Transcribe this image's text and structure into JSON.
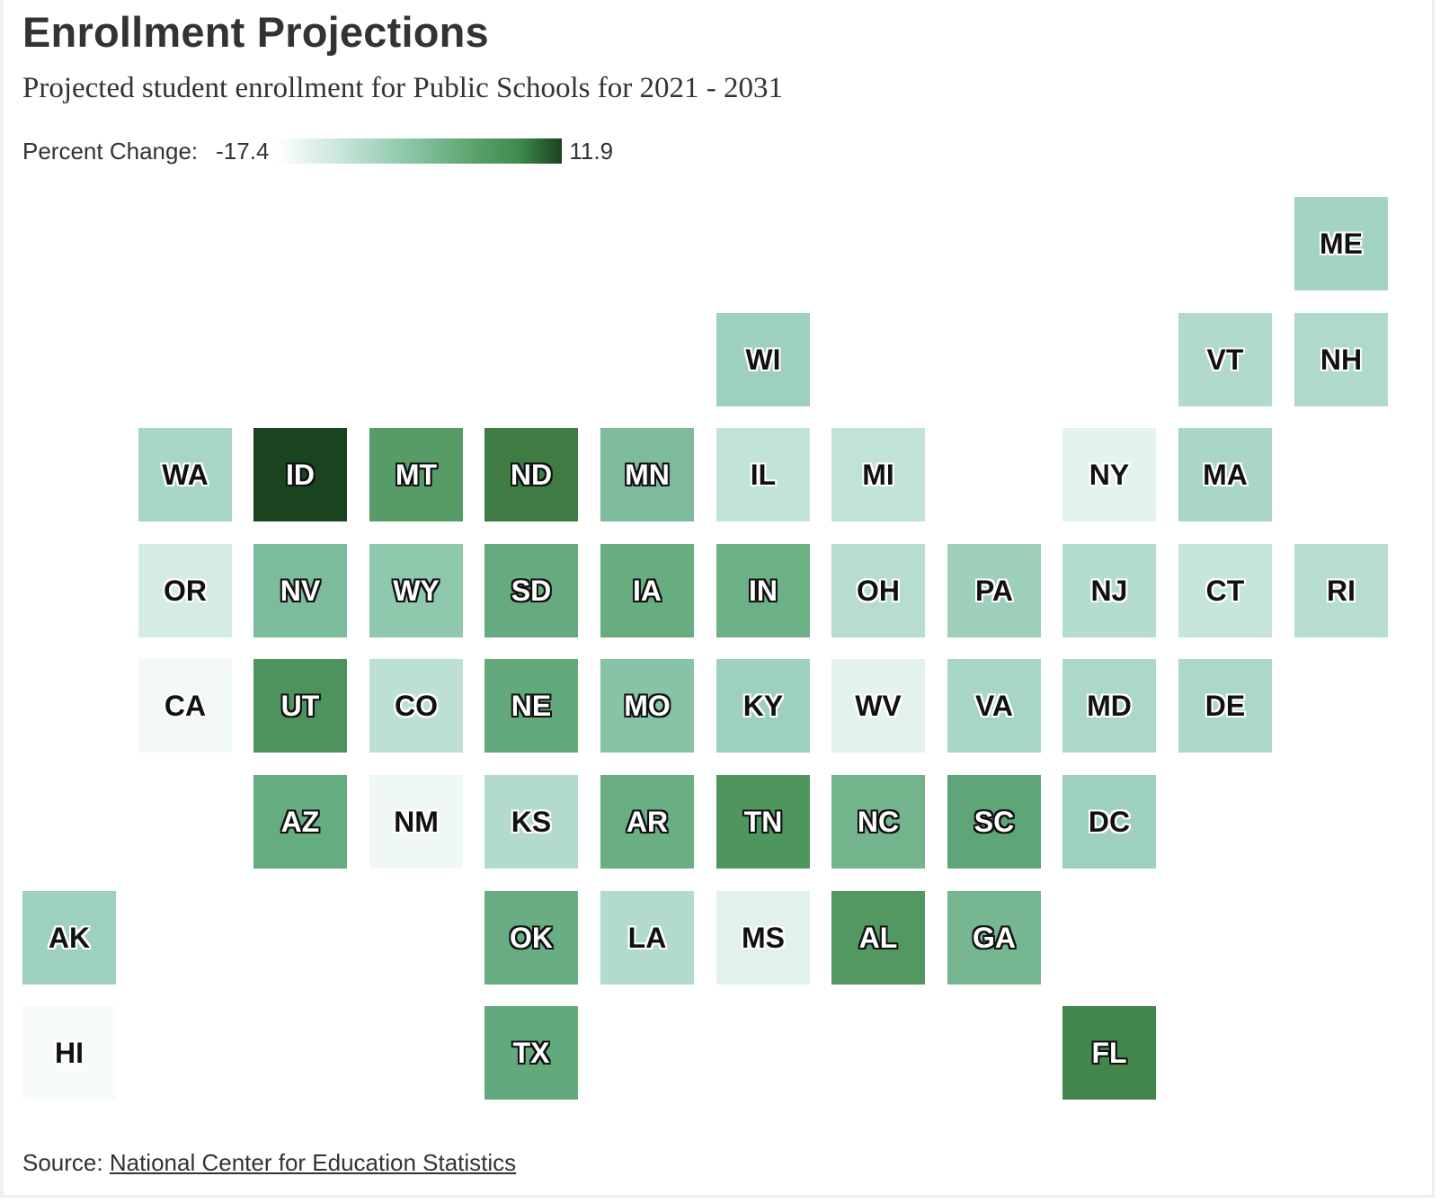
{
  "title": "Enrollment Projections",
  "subtitle": "Projected student enrollment for Public Schools for 2021 - 2031",
  "legend": {
    "label": "Percent Change:",
    "min_label": "-17.4",
    "max_label": "11.9"
  },
  "source": {
    "prefix": "Source:",
    "link_text": "National Center for Education Statistics"
  },
  "chart_data": {
    "type": "heatmap",
    "title": "Enrollment Projections",
    "subtitle": "Projected student enrollment for Public Schools for 2021 - 2031",
    "color_scale": {
      "min": -17.4,
      "max": 11.9,
      "colors": [
        "#ffffff",
        "#1a4320"
      ]
    },
    "states": [
      {
        "code": "ME",
        "row": 0,
        "col": 11,
        "color": "#a3d3c2",
        "dark_text": false
      },
      {
        "code": "WI",
        "row": 1,
        "col": 6,
        "color": "#9ed1bd",
        "dark_text": false
      },
      {
        "code": "VT",
        "row": 1,
        "col": 10,
        "color": "#b1dacb",
        "dark_text": false
      },
      {
        "code": "NH",
        "row": 1,
        "col": 11,
        "color": "#afd9ca",
        "dark_text": false
      },
      {
        "code": "WA",
        "row": 2,
        "col": 1,
        "color": "#a8d6c5",
        "dark_text": false
      },
      {
        "code": "ID",
        "row": 2,
        "col": 2,
        "color": "#1a4320",
        "dark_text": true
      },
      {
        "code": "MT",
        "row": 2,
        "col": 3,
        "color": "#579b66",
        "dark_text": true
      },
      {
        "code": "ND",
        "row": 2,
        "col": 4,
        "color": "#3e7c44",
        "dark_text": true
      },
      {
        "code": "MN",
        "row": 2,
        "col": 5,
        "color": "#7dbb9c",
        "dark_text": true
      },
      {
        "code": "IL",
        "row": 2,
        "col": 6,
        "color": "#c2e3d8",
        "dark_text": false
      },
      {
        "code": "MI",
        "row": 2,
        "col": 7,
        "color": "#c0e2d7",
        "dark_text": false
      },
      {
        "code": "NY",
        "row": 2,
        "col": 9,
        "color": "#e5f3ef",
        "dark_text": false
      },
      {
        "code": "MA",
        "row": 2,
        "col": 10,
        "color": "#a9d6c6",
        "dark_text": false
      },
      {
        "code": "OR",
        "row": 3,
        "col": 1,
        "color": "#d5ece5",
        "dark_text": false
      },
      {
        "code": "NV",
        "row": 3,
        "col": 2,
        "color": "#7cbc9c",
        "dark_text": true
      },
      {
        "code": "WY",
        "row": 3,
        "col": 3,
        "color": "#8ec8ad",
        "dark_text": true
      },
      {
        "code": "SD",
        "row": 3,
        "col": 4,
        "color": "#65ab7f",
        "dark_text": true
      },
      {
        "code": "IA",
        "row": 3,
        "col": 5,
        "color": "#68ad80",
        "dark_text": true
      },
      {
        "code": "IN",
        "row": 3,
        "col": 6,
        "color": "#6cb085",
        "dark_text": true
      },
      {
        "code": "OH",
        "row": 3,
        "col": 7,
        "color": "#b6ddd0",
        "dark_text": false
      },
      {
        "code": "PA",
        "row": 3,
        "col": 8,
        "color": "#9ecfbb",
        "dark_text": false
      },
      {
        "code": "NJ",
        "row": 3,
        "col": 9,
        "color": "#b4dccf",
        "dark_text": false
      },
      {
        "code": "CT",
        "row": 3,
        "col": 10,
        "color": "#c6e5db",
        "dark_text": false
      },
      {
        "code": "RI",
        "row": 3,
        "col": 11,
        "color": "#b8ded1",
        "dark_text": false
      },
      {
        "code": "CA",
        "row": 4,
        "col": 1,
        "color": "#f2f9f7",
        "dark_text": false
      },
      {
        "code": "UT",
        "row": 4,
        "col": 2,
        "color": "#4e935d",
        "dark_text": true
      },
      {
        "code": "CO",
        "row": 4,
        "col": 3,
        "color": "#bce1d4",
        "dark_text": false
      },
      {
        "code": "NE",
        "row": 4,
        "col": 4,
        "color": "#62aa7c",
        "dark_text": true
      },
      {
        "code": "MO",
        "row": 4,
        "col": 5,
        "color": "#87c4a7",
        "dark_text": true
      },
      {
        "code": "KY",
        "row": 4,
        "col": 6,
        "color": "#9ed1bd",
        "dark_text": false
      },
      {
        "code": "WV",
        "row": 4,
        "col": 7,
        "color": "#e4f2ee",
        "dark_text": false
      },
      {
        "code": "VA",
        "row": 4,
        "col": 8,
        "color": "#a8d6c5",
        "dark_text": false
      },
      {
        "code": "MD",
        "row": 4,
        "col": 9,
        "color": "#acd8c8",
        "dark_text": false
      },
      {
        "code": "DE",
        "row": 4,
        "col": 10,
        "color": "#acd8c8",
        "dark_text": false
      },
      {
        "code": "AZ",
        "row": 5,
        "col": 2,
        "color": "#66ac81",
        "dark_text": true
      },
      {
        "code": "NM",
        "row": 5,
        "col": 3,
        "color": "#f0f8f6",
        "dark_text": false
      },
      {
        "code": "KS",
        "row": 5,
        "col": 4,
        "color": "#b2dbcc",
        "dark_text": false
      },
      {
        "code": "AR",
        "row": 5,
        "col": 5,
        "color": "#6aae83",
        "dark_text": true
      },
      {
        "code": "TN",
        "row": 5,
        "col": 6,
        "color": "#4f955e",
        "dark_text": true
      },
      {
        "code": "NC",
        "row": 5,
        "col": 7,
        "color": "#73b48c",
        "dark_text": true
      },
      {
        "code": "SC",
        "row": 5,
        "col": 8,
        "color": "#5ea577",
        "dark_text": true
      },
      {
        "code": "DC",
        "row": 5,
        "col": 9,
        "color": "#9ed1bd",
        "dark_text": false
      },
      {
        "code": "AK",
        "row": 6,
        "col": 0,
        "color": "#9ed1bd",
        "dark_text": false
      },
      {
        "code": "OK",
        "row": 6,
        "col": 4,
        "color": "#69ad82",
        "dark_text": true
      },
      {
        "code": "LA",
        "row": 6,
        "col": 5,
        "color": "#b2dbcc",
        "dark_text": false
      },
      {
        "code": "MS",
        "row": 6,
        "col": 6,
        "color": "#e2f1ec",
        "dark_text": false
      },
      {
        "code": "AL",
        "row": 6,
        "col": 7,
        "color": "#529860",
        "dark_text": true
      },
      {
        "code": "GA",
        "row": 6,
        "col": 8,
        "color": "#76b690",
        "dark_text": true
      },
      {
        "code": "HI",
        "row": 7,
        "col": 0,
        "color": "#f7fbfa",
        "dark_text": false
      },
      {
        "code": "TX",
        "row": 7,
        "col": 4,
        "color": "#62aa7c",
        "dark_text": true
      },
      {
        "code": "FL",
        "row": 7,
        "col": 9,
        "color": "#43864c",
        "dark_text": true
      }
    ]
  }
}
